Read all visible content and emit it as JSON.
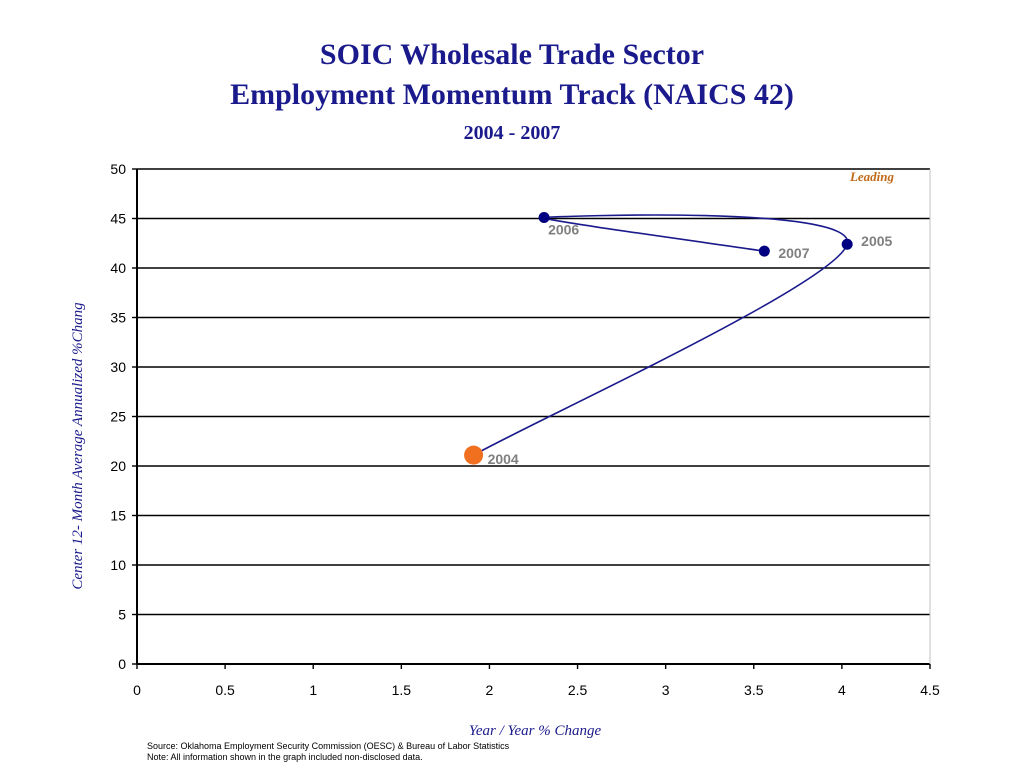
{
  "titles": {
    "line1": "SOIC Wholesale Trade Sector",
    "line2": "Employment Momentum Track (NAICS 42)",
    "line3": "2004 - 2007"
  },
  "footnotes": {
    "source": "Source:  Oklahoma Employment Security Commission (OESC) & Bureau of Labor Statistics",
    "note": "Note: All information shown in the graph included non-disclosed data."
  },
  "colors": {
    "title": "#1a1a8c",
    "line": "#1a1a8c",
    "marker": "#000080",
    "start_marker": "#f07020",
    "point_label": "#808080",
    "quadrant_label": "#c06a1a"
  },
  "chart_data": {
    "type": "scatter",
    "xlabel": "Year / Year % Change",
    "ylabel": "Center 12- Month Average Annualized %Chang",
    "xlim": [
      0,
      4.5
    ],
    "ylim": [
      0,
      50
    ],
    "xticks": [
      "0",
      "0.5",
      "1",
      "1.5",
      "2",
      "2.5",
      "3",
      "3.5",
      "4",
      "4.5"
    ],
    "yticks": [
      "0",
      "5",
      "10",
      "15",
      "20",
      "25",
      "30",
      "35",
      "40",
      "45",
      "50"
    ],
    "grid": "horizontal",
    "connected": true,
    "quadrant_labels": [
      "Leading"
    ],
    "points": [
      {
        "label": "2004",
        "x": 1.91,
        "y": 21.1
      },
      {
        "label": "2005",
        "x": 4.03,
        "y": 42.4
      },
      {
        "label": "2006",
        "x": 2.31,
        "y": 45.1
      },
      {
        "label": "2007",
        "x": 3.56,
        "y": 41.7
      }
    ]
  }
}
